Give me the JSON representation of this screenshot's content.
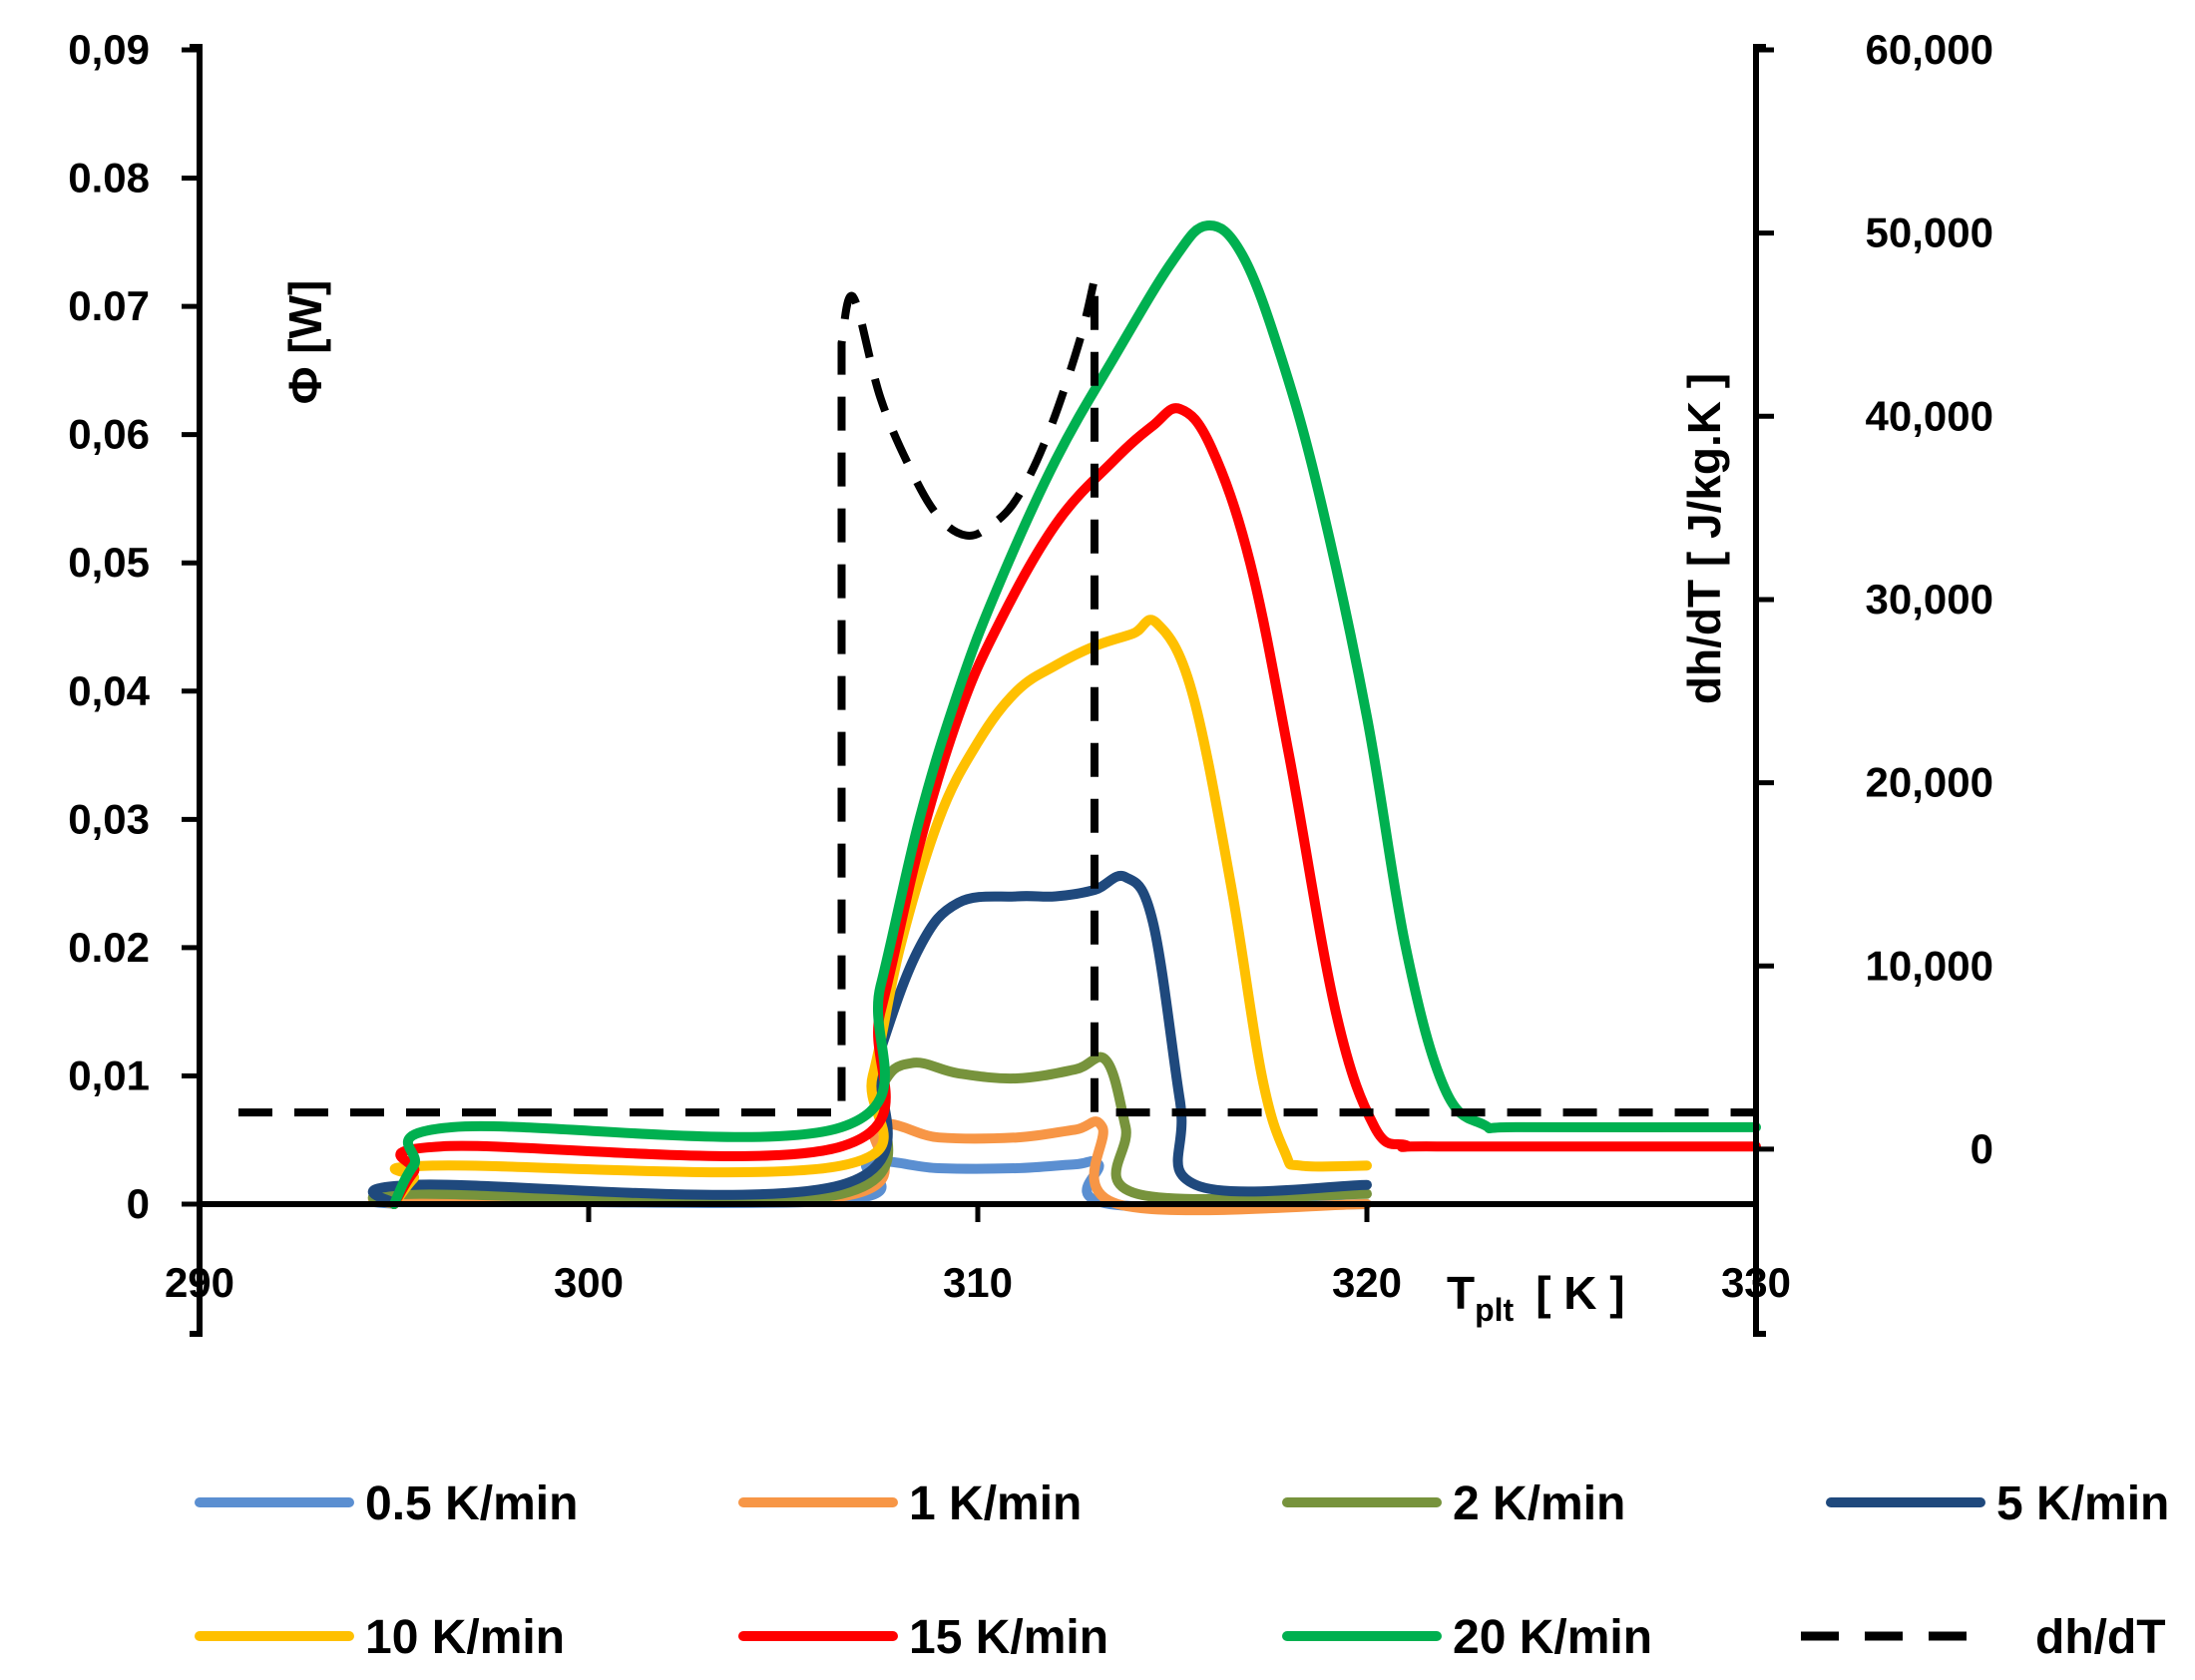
{
  "chart_data": {
    "type": "line",
    "x_title_main": "T",
    "x_title_sub": "plt",
    "x_title_unit": "[ K ]",
    "y_left_title": "Φ [W]",
    "y_right_title": "dh/dT [ J/kg.K ]",
    "xlim": [
      290,
      330
    ],
    "ylim_left": [
      0,
      0.09
    ],
    "ylim_right": [
      -3000,
      60000
    ],
    "x_ticks": [
      {
        "value": 290,
        "label": "290"
      },
      {
        "value": 300,
        "label": "300"
      },
      {
        "value": 310,
        "label": "310"
      },
      {
        "value": 320,
        "label": "320"
      },
      {
        "value": 330,
        "label": "330"
      }
    ],
    "y_left_ticks": [
      {
        "value": 0,
        "label": "0"
      },
      {
        "value": 0.01,
        "label": "0,01"
      },
      {
        "value": 0.02,
        "label": "0.02"
      },
      {
        "value": 0.03,
        "label": "0,03"
      },
      {
        "value": 0.04,
        "label": "0,04"
      },
      {
        "value": 0.05,
        "label": "0,05"
      },
      {
        "value": 0.06,
        "label": "0,06"
      },
      {
        "value": 0.07,
        "label": "0.07"
      },
      {
        "value": 0.08,
        "label": "0.08"
      },
      {
        "value": 0.09,
        "label": "0,09"
      }
    ],
    "y_right_ticks": [
      {
        "value": 0,
        "label": "0"
      },
      {
        "value": 10000,
        "label": "10,000"
      },
      {
        "value": 20000,
        "label": "20,000"
      },
      {
        "value": 30000,
        "label": "30,000"
      },
      {
        "value": 40000,
        "label": "40,000"
      },
      {
        "value": 50000,
        "label": "50,000"
      },
      {
        "value": 60000,
        "label": "60,000"
      }
    ],
    "series": [
      {
        "name": "0.5 K/min",
        "color": "#5B8FD1",
        "axis": "left",
        "dashed": false,
        "x": [
          295,
          295.5,
          306.5,
          307.2,
          309,
          311,
          312.5,
          313.1,
          313.4,
          320
        ],
        "y": [
          0,
          0.0003,
          0.0003,
          0.0032,
          0.0028,
          0.0028,
          0.0031,
          0.0031,
          0,
          0
        ]
      },
      {
        "name": "1 K/min",
        "color": "#F79646",
        "axis": "left",
        "dashed": false,
        "x": [
          295,
          295.5,
          306.5,
          307.4,
          309,
          311,
          312.5,
          313.2,
          313.6,
          320
        ],
        "y": [
          0,
          0.0006,
          0.0006,
          0.006,
          0.0052,
          0.0052,
          0.0058,
          0.006,
          0,
          0
        ]
      },
      {
        "name": "2 K/min",
        "color": "#77933C",
        "axis": "left",
        "dashed": false,
        "x": [
          295,
          295.5,
          306.5,
          307.5,
          308.3,
          309.5,
          311,
          312.5,
          313.3,
          313.8,
          314.1,
          320
        ],
        "y": [
          0,
          0.0008,
          0.0008,
          0.009,
          0.011,
          0.0102,
          0.0098,
          0.0105,
          0.0112,
          0.006,
          0.0008,
          0.0008
        ]
      },
      {
        "name": "5 K/min",
        "color": "#1F497D",
        "axis": "left",
        "dashed": false,
        "x": [
          295,
          295.5,
          306.5,
          307.5,
          308.5,
          309.5,
          311,
          312,
          313,
          313.8,
          314.5,
          315.2,
          315.6,
          320
        ],
        "y": [
          0,
          0.0015,
          0.0015,
          0.012,
          0.02,
          0.0235,
          0.024,
          0.024,
          0.0245,
          0.0255,
          0.022,
          0.008,
          0.0015,
          0.0015
        ]
      },
      {
        "name": "10 K/min",
        "color": "#FFC000",
        "axis": "left",
        "dashed": false,
        "x": [
          295,
          295.5,
          296,
          306.5,
          307.3,
          308,
          309,
          310,
          311,
          312,
          313,
          314,
          314.6,
          315.5,
          316.5,
          317.3,
          317.9,
          318.3,
          320
        ],
        "y": [
          0,
          0.002,
          0.003,
          0.003,
          0.01,
          0.02,
          0.03,
          0.036,
          0.04,
          0.042,
          0.0435,
          0.0445,
          0.0453,
          0.04,
          0.025,
          0.01,
          0.004,
          0.003,
          0.003
        ]
      },
      {
        "name": "15 K/min",
        "color": "#FF0000",
        "axis": "left",
        "dashed": false,
        "x": [
          295,
          295.5,
          296.2,
          306.5,
          307.5,
          308.5,
          309.5,
          310.5,
          312,
          313.5,
          314.5,
          315.2,
          316,
          317,
          318,
          319.2,
          320.2,
          321,
          321.8,
          330
        ],
        "y": [
          0,
          0.0025,
          0.0045,
          0.0045,
          0.015,
          0.028,
          0.038,
          0.045,
          0.053,
          0.058,
          0.0607,
          0.062,
          0.059,
          0.05,
          0.035,
          0.015,
          0.006,
          0.0046,
          0.0045,
          0.0045
        ]
      },
      {
        "name": "20 K/min",
        "color": "#00B050",
        "axis": "left",
        "dashed": false,
        "x": [
          295,
          295.5,
          296.5,
          306.5,
          307.5,
          308.5,
          309.5,
          310.5,
          312,
          313.5,
          315,
          315.9,
          316.8,
          317.8,
          318.8,
          320,
          321,
          322,
          323,
          324,
          330
        ],
        "y": [
          0,
          0.003,
          0.006,
          0.006,
          0.017,
          0.03,
          0.04,
          0.048,
          0.058,
          0.066,
          0.0735,
          0.0763,
          0.074,
          0.066,
          0.055,
          0.038,
          0.02,
          0.009,
          0.0062,
          0.006,
          0.006
        ]
      },
      {
        "name": "dh/dT",
        "color": "#000000",
        "axis": "right",
        "dashed": true,
        "x": [
          291,
          306.5,
          306.5,
          306.8,
          307.5,
          308.3,
          309,
          309.7,
          310.3,
          311,
          311.8,
          312.6,
          313,
          313,
          313.1,
          330
        ],
        "y": [
          2000,
          2000,
          44000,
          46500,
          41000,
          37000,
          34500,
          33500,
          34000,
          35500,
          39000,
          44000,
          47500,
          2000,
          2000,
          2000
        ]
      }
    ],
    "legend_position": "bottom"
  }
}
